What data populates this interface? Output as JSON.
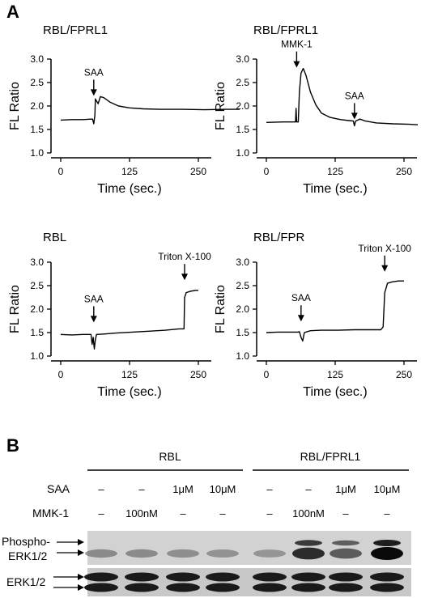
{
  "figure": {
    "panel_a_label": "A",
    "panel_b_label": "B"
  },
  "chart_data": [
    {
      "type": "line",
      "title": "RBL/FPRL1",
      "xlabel": "Time (sec.)",
      "ylabel": "FL Ratio",
      "xlim": [
        0,
        330
      ],
      "ylim": [
        1.0,
        3.0
      ],
      "x_ticks": [
        0,
        125,
        250
      ],
      "y_ticks": [
        "1.0",
        "1.5",
        "2.0",
        "2.5",
        "3.0"
      ],
      "grid": false,
      "annotations": [
        {
          "text": "SAA",
          "x": 60,
          "y": 2.2
        }
      ],
      "series": [
        {
          "points": [
            [
              0,
              1.7
            ],
            [
              20,
              1.71
            ],
            [
              40,
              1.71
            ],
            [
              55,
              1.72
            ],
            [
              58,
              1.72
            ],
            [
              60,
              1.62
            ],
            [
              62,
              1.8
            ],
            [
              63,
              2.15
            ],
            [
              68,
              2.05
            ],
            [
              72,
              2.2
            ],
            [
              78,
              2.18
            ],
            [
              90,
              2.08
            ],
            [
              105,
              2.0
            ],
            [
              125,
              1.96
            ],
            [
              150,
              1.94
            ],
            [
              180,
              1.93
            ],
            [
              220,
              1.93
            ],
            [
              260,
              1.92
            ],
            [
              300,
              1.93
            ],
            [
              325,
              1.93
            ]
          ]
        }
      ]
    },
    {
      "type": "line",
      "title": "RBL/FPRL1",
      "xlabel": "Time (sec.)",
      "ylabel": "FL Ratio",
      "xlim": [
        0,
        280
      ],
      "ylim": [
        1.0,
        3.0
      ],
      "x_ticks": [
        0,
        125,
        250
      ],
      "y_ticks": [
        "1.0",
        "1.5",
        "2.0",
        "2.5",
        "3.0"
      ],
      "grid": false,
      "annotations": [
        {
          "text": "MMK-1",
          "x": 55,
          "y": 2.8
        },
        {
          "text": "SAA",
          "x": 160,
          "y": 1.7
        }
      ],
      "series": [
        {
          "points": [
            [
              0,
              1.65
            ],
            [
              30,
              1.66
            ],
            [
              53,
              1.66
            ],
            [
              54,
              1.95
            ],
            [
              55,
              1.66
            ],
            [
              58,
              1.66
            ],
            [
              60,
              2.3
            ],
            [
              63,
              2.7
            ],
            [
              67,
              2.8
            ],
            [
              72,
              2.65
            ],
            [
              80,
              2.3
            ],
            [
              90,
              2.02
            ],
            [
              100,
              1.85
            ],
            [
              115,
              1.76
            ],
            [
              135,
              1.71
            ],
            [
              150,
              1.69
            ],
            [
              158,
              1.68
            ],
            [
              160,
              1.58
            ],
            [
              162,
              1.68
            ],
            [
              170,
              1.72
            ],
            [
              180,
              1.68
            ],
            [
              200,
              1.64
            ],
            [
              230,
              1.62
            ],
            [
              260,
              1.61
            ],
            [
              275,
              1.6
            ]
          ]
        }
      ]
    },
    {
      "type": "line",
      "title": "RBL",
      "xlabel": "Time (sec.)",
      "ylabel": "FL Ratio",
      "xlim": [
        0,
        300
      ],
      "ylim": [
        1.0,
        3.0
      ],
      "x_ticks": [
        0,
        125,
        250
      ],
      "y_ticks": [
        "1.0",
        "1.5",
        "2.0",
        "2.5",
        "3.0"
      ],
      "grid": false,
      "annotations": [
        {
          "text": "SAA",
          "x": 60,
          "y": 1.7
        },
        {
          "text": "Triton X-100",
          "x": 225,
          "y": 2.6
        }
      ],
      "series": [
        {
          "points": [
            [
              0,
              1.46
            ],
            [
              20,
              1.45
            ],
            [
              40,
              1.46
            ],
            [
              55,
              1.46
            ],
            [
              57,
              1.25
            ],
            [
              59,
              1.4
            ],
            [
              61,
              1.15
            ],
            [
              63,
              1.35
            ],
            [
              65,
              1.46
            ],
            [
              80,
              1.47
            ],
            [
              100,
              1.49
            ],
            [
              130,
              1.51
            ],
            [
              160,
              1.53
            ],
            [
              190,
              1.55
            ],
            [
              215,
              1.58
            ],
            [
              224,
              1.58
            ],
            [
              225,
              2.25
            ],
            [
              228,
              2.35
            ],
            [
              235,
              2.38
            ],
            [
              245,
              2.4
            ],
            [
              250,
              2.4
            ]
          ]
        }
      ]
    },
    {
      "type": "line",
      "title": "RBL/FPR",
      "xlabel": "Time (sec.)",
      "ylabel": "FL Ratio",
      "xlim": [
        0,
        300
      ],
      "ylim": [
        1.0,
        3.0
      ],
      "x_ticks": [
        0,
        125,
        250
      ],
      "y_ticks": [
        "1.0",
        "1.5",
        "2.0",
        "2.5",
        "3.0"
      ],
      "grid": false,
      "annotations": [
        {
          "text": "SAA",
          "x": 63,
          "y": 1.72
        },
        {
          "text": "Triton X-100",
          "x": 215,
          "y": 2.78
        }
      ],
      "series": [
        {
          "points": [
            [
              0,
              1.5
            ],
            [
              20,
              1.51
            ],
            [
              40,
              1.51
            ],
            [
              58,
              1.51
            ],
            [
              60,
              1.52
            ],
            [
              63,
              1.4
            ],
            [
              66,
              1.32
            ],
            [
              69,
              1.5
            ],
            [
              80,
              1.54
            ],
            [
              100,
              1.55
            ],
            [
              130,
              1.55
            ],
            [
              160,
              1.56
            ],
            [
              190,
              1.56
            ],
            [
              208,
              1.56
            ],
            [
              212,
              1.62
            ],
            [
              215,
              2.35
            ],
            [
              220,
              2.55
            ],
            [
              228,
              2.58
            ],
            [
              240,
              2.6
            ],
            [
              250,
              2.6
            ]
          ]
        }
      ]
    }
  ],
  "blot": {
    "group_rbl": "RBL",
    "group_fprl1": "RBL/FPRL1",
    "saa_label": "SAA",
    "mmk_label": "MMK-1",
    "phospho_label_1": "Phospho-",
    "phospho_label_2": "ERK1/2",
    "erk_label": "ERK1/2",
    "saa_values": [
      "–",
      "–",
      "1μM",
      "10μM",
      "–",
      "–",
      "1μM",
      "10μM"
    ],
    "mmk_values": [
      "–",
      "100nM",
      "–",
      "–",
      "–",
      "100nM",
      "–",
      "–"
    ],
    "phospho_intensity": [
      0.3,
      0.3,
      0.28,
      0.25,
      0.22,
      0.85,
      0.6,
      1.0
    ]
  }
}
